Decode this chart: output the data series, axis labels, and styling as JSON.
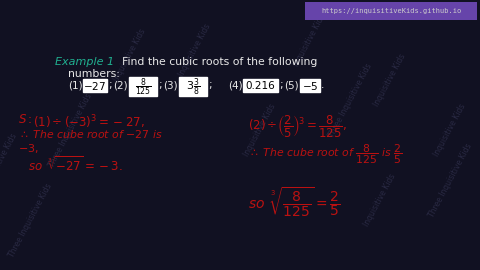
{
  "bg_color": "#111122",
  "teal_color": "#20b090",
  "white_color": "#e8e8e8",
  "red_color": "#bb1111",
  "url_bg": "#6644aa",
  "url_text": "#cccccc",
  "url": "https://inquisitiveKids.github.io",
  "watermark": "Three Inquisitive Kids",
  "watermark2": "Inquisitive Kids",
  "wm_color": "#3a3a5a"
}
